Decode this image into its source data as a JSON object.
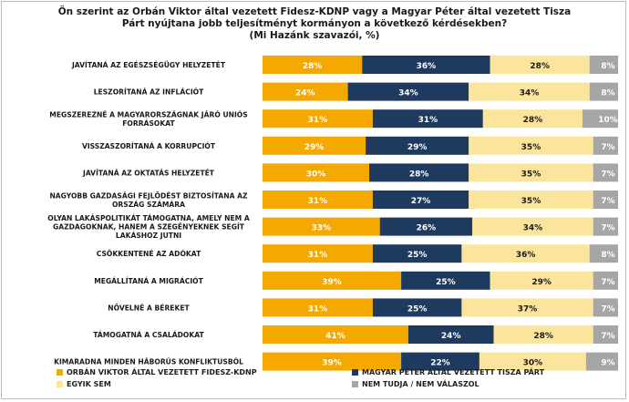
{
  "title": {
    "line1": "Ön szerint az Orbán Viktor által vezetett Fidesz-KDNP vagy a Magyar Péter által vezetett Tisza",
    "line2": "Párt nyújtana jobb teljesítményt kormányon a következő kérdésekben?",
    "line3": "(Mi Hazánk szavazói, %)"
  },
  "colors": {
    "fidesz": "#f5a800",
    "tisza": "#1f3a5f",
    "egyik_sem": "#fbe59c",
    "nem_tudja": "#a6a6a6",
    "label_dark": "#ffffff",
    "label_light": "#1a1a1a"
  },
  "chart_data": {
    "type": "bar",
    "orientation": "horizontal",
    "stacked": true,
    "title": "Ön szerint az Orbán Viktor által vezetett Fidesz-KDNP vagy a Magyar Péter által vezetett Tisza Párt nyújtana jobb teljesítményt kormányon a következő kérdésekben? (Mi Hazánk szavazói, %)",
    "xlim": [
      0,
      100
    ],
    "categories": [
      [
        "JAVÍTANÁ AZ EGÉSZSÉGÜGY HELYZETÉT"
      ],
      [
        "LESZORÍTANÁ AZ INFLÁCIÓT"
      ],
      [
        "MEGSZEREZNÉ A MAGYARORSZÁGNAK JÁRÓ UNIÓS",
        "FORRÁSOKAT"
      ],
      [
        "VISSZASZORÍTANÁ A KORRUPCIÓT"
      ],
      [
        "JAVÍTANÁ AZ OKTATÁS HELYZETÉT"
      ],
      [
        "NAGYOBB GAZDASÁGI FEJLŐDÉST BIZTOSÍTANA AZ",
        "ORSZÁG SZÁMÁRA"
      ],
      [
        "OLYAN LAKÁSPOLITIKÁT TÁMOGATNA, AMELY NEM A",
        "GAZDAGOKNAK, HANEM A SZEGÉNYEKNEK SEGÍT",
        "LAKÁSHOZ JUTNI"
      ],
      [
        "CSÖKKENTENÉ AZ ADÓKAT"
      ],
      [
        "MEGÁLLÍTANÁ A MIGRÁCIÓT"
      ],
      [
        "NÖVELNÉ A BÉREKET"
      ],
      [
        "TÁMOGATNÁ A CSALÁDOKAT"
      ],
      [
        "KIMARADNA MINDEN HÁBORÚS KONFLIKTUSBÓL"
      ]
    ],
    "series": [
      {
        "name": "ORBÁN VIKTOR ÁLTAL VEZETETT FIDESZ-KDNP",
        "color_key": "fidesz",
        "values": [
          28,
          24,
          31,
          29,
          30,
          31,
          33,
          31,
          39,
          31,
          41,
          39
        ]
      },
      {
        "name": "MAGYAR PÉTER ÁLTAL VEZETETT TISZA PÁRT",
        "color_key": "tisza",
        "values": [
          36,
          34,
          31,
          29,
          28,
          27,
          26,
          25,
          25,
          25,
          24,
          22
        ]
      },
      {
        "name": "EGYIK SEM",
        "color_key": "egyik_sem",
        "values": [
          28,
          34,
          28,
          35,
          35,
          35,
          34,
          36,
          29,
          37,
          28,
          30
        ]
      },
      {
        "name": "NEM TUDJA / NEM VÁLASZOL",
        "color_key": "nem_tudja",
        "values": [
          8,
          8,
          10,
          7,
          7,
          7,
          7,
          8,
          7,
          7,
          7,
          9
        ]
      }
    ],
    "value_suffix": "%",
    "legend_position": "bottom"
  }
}
